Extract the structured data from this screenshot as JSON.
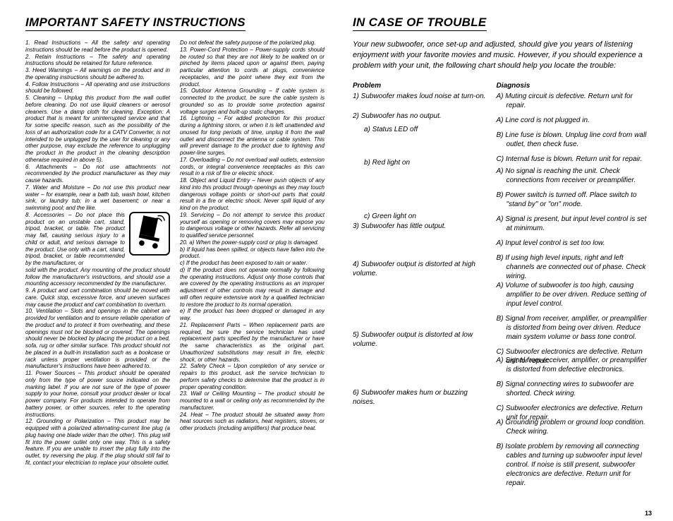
{
  "page_number": "13",
  "left": {
    "heading": "IMPORTANT SAFETY INSTRUCTIONS",
    "col1": {
      "para_a": "1.  Read Instructions – All the safety and operating instructions should be read before the product is opened.\n2.  Retain Instructions – The safety and operating instructions should be retained for future reference.\n3.  Heed Warnings – All warnings on the product and in the operating instructions should be adhered to.\n4.  Follow Instructions – All operating and use instructions should be followed.\n5.  Cleaning – Unplug this product from the wall outlet before cleaning. Do not use liquid cleaners or aerosol cleaners. Use a damp cloth for cleaning. Exception: A product that is meant for uninterrupted service and that for some specific reason, such as the possibility of the loss of an authorization code for a CATV Converter, is not intended to be unplugged by the user for cleaning or any other purpose, may exclude the reference to unplugging the product in the product in the cleaning description otherwise required in above 5).\n6.  Attachments – Do not use attachments not recommended by the product manufacturer as they may cause hazards.\n7.  Water and Moisture – Do not use this product near water – for example, near a bath tub, wash bowl, kitchen sink, or laundry tub; in a wet basement; or near a swimming pool; and the like.",
      "icon_text": "8.  Accessories – Do not place this product on an unstable cart, stand, tripod, bracket, or table. The product may fall, causing serious injury to a child or adult, and serious damage to the product. Use only with a cart, stand, tripod, bracket, or table recommended by the manufacturer, or",
      "para_b": "sold with the product. Any mounting of the product should follow the manufacturer's instructions, and should use a mounting accessory recommended by the manufacturer.\n9.  A product and cart combination should be moved with care. Quick stop, excessive force, and uneven surfaces may cause the product and cart combination to overturn.\n10.  Ventilation – Slots and openings in the cabinet are provided for ventilation and to ensure reliable operation of the product and to protect it from overheating, and these openings must not be blocked or covered. The openings should never be blocked by placing the product on a bed, sofa, rug or other similar surface. This product should not be placed in a built-in installation such as a bookcase or rack unless proper ventilation is provided or the manufacturer's instructions have been adhered to.\n11.  Power Sources – This product should be operated only from the type of power source indicated on the marking label. If you are not sure of the type of power supply to your home, consult your product dealer or local power company. For products intended to operate from battery power, or other sources, refer to the operating instructions.\n12.  Grounding or Polarization – This product may be equipped with a polarized alternating-current line plug (a plug having one blade wider than the other). This plug will fit into the power outlet only one way. This is a safety feature. If you are unable to insert the plug fully into the outlet, try reversing the plug. If the plug should still fail to fit, contact your electrician to replace your obsolete outlet."
    },
    "col2": "Do not defeat the safety purpose of the polarized plug.\n13.  Power-Cord Protection – Power-supply cords should be routed so that they are not likely to be walked on or pinched by items placed upon or against them, paying particular attention to cords at plugs, convenience receptacles, and the point where they exit from the product.\n15.  Outdoor Antenna Grounding – If cable system is connected to the product, be sure the cable system is grounded so as to provide some protection against voltage surges and built-up static charges.\n16.  Lightning – For added protection for this product during a lightning storm, or when it is left unattended and unused for long periods of time, unplug it from the wall outlet and disconnect the antenna or cable system. This will prevent damage to the product due to lightning and power-line surges.\n17.  Overloading – Do not overload wall outlets, extension cords, or integral convenience receptacles as this can result in a risk of fire or electric shock.\n18.  Object and Liquid Entry – Never push objects of any kind into this product through openings as they may touch dangerous voltage points or short-out parts that could result in a fire or electric shock. Never spill liquid of any kind on the product.\n19.  Servicing – Do not attempt to service this product yourself as opening or removing covers may expose you to dangerous voltage or other hazards. Refer all servicing to qualified service personnel.\n20. a) When the power-supply cord or plug is damaged.\n  b) If liquid has been spilled, or objects have fallen into the product.\n  c) If the product has been exposed to rain or water.\n  d) If the product does not operate normally by following the operating instructions. Adjust only those controls that are covered by the operating instructions as an improper adjustment of other controls may result in damage and will often require extensive work by a qualified technician to restore the product to its normal operation.\n  e) If the product has been dropped or damaged in any way.\n21. Replacement Parts – When replacement parts are required, be sure the service technician has used replacement parts specified by the manufacturer or have the same characteristics as the original part. Unauthorized substitutions may result in fire, electric shock, or other hazards.\n22. Safety Check – Upon completion of any service or repairs to this product, ask the service technician to perform safety checks to determine that the product is in proper operating condition.\n23. Wall or Ceiling Mounting – The product should be mounted to a wall or ceiling only as recommended by the manufacturer.\n24. Heat – The product should be situated away from heat sources such as radiators, heat registers, stoves, or other products (including amplifiers) that produce heat."
  },
  "right": {
    "heading": "IN CASE OF TROUBLE",
    "intro": "Your new subwoofer, once set-up and adjusted, should give you years of listening enjoyment with your favorite movies and music. However, if you should experience a problem with your unit, the following chart should help you locate the trouble:",
    "problem_hdr": "Problem",
    "diagnosis_hdr": "Diagnosis",
    "rows": [
      {
        "problem": "1)  Subwoofer makes loud noise at turn-on.",
        "diagnosis": [
          "A) Muting circuit is defective. Return unit for repair."
        ]
      },
      {
        "problem": "2)  Subwoofer has no output.",
        "sub": [
          "a) Status LED off"
        ],
        "diagnosis": [
          "A) Line cord is not plugged in.",
          "B) Line fuse is blown. Unplug line cord from wall outlet, then check fuse.",
          "C) Internal fuse is blown.  Return unit for repair."
        ]
      },
      {
        "problem": "",
        "sub": [
          "b) Red light on"
        ],
        "diagnosis": [
          "A) No signal is reaching the unit. Check connections from receiver or preamplifier.",
          "B) Power switch is turned off. Place switch to \"stand by\" or \"on\" mode.",
          "A) Signal is present, but input level control is set at minimum."
        ]
      },
      {
        "problem": "",
        "sub": [
          "c) Green light on"
        ],
        "diagnosis": []
      },
      {
        "problem": "3)  Subwoofer has little output.",
        "diagnosis": [
          "A) Input level control is set too low.",
          "B) If using high level inputs, right and left channels are connected out of phase. Check wiring."
        ]
      },
      {
        "problem": "4)  Subwoofer output is distorted at high volume.",
        "diagnosis": [
          "A) Volume of subwoofer is too high, causing amplifier to be over driven. Reduce setting of input level control.",
          "B) Signal from receiver, amplifier, or preamplifier is distorted from being over driven.  Reduce main system volume or bass tone control.",
          "C) Subwoofer electronics are defective.  Return unit for repair."
        ]
      },
      {
        "problem": "5)  Subwoofer output is distorted at low volume.",
        "diagnosis": [
          "A) Signal from receiver, amplifier, or preamplifier is distorted from defective electronics.",
          "B) Signal connecting wires to subwoofer are shorted.  Check wiring.",
          "C) Subwoofer electronics are defective.  Return unit for repair."
        ]
      },
      {
        "problem": "6)  Subwoofer makes hum or buzzing noises.",
        "diagnosis": [
          "A) Grounding problem or ground loop condition.  Check wiring.",
          "B) Isolate problem by removing all connecting cables and turning up subwoofer input level control. If noise is still present, subwoofer electronics are defective.  Return unit for repair."
        ]
      }
    ]
  }
}
